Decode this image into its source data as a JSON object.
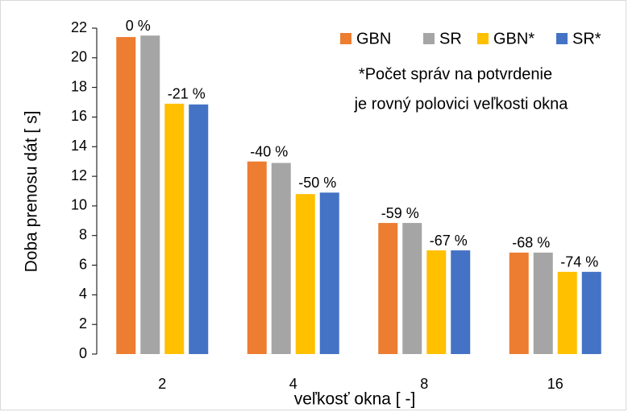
{
  "chart_data": {
    "type": "bar",
    "ylabel": "Doba prenosu dát [ s]",
    "xlabel": "veľkosť okna [ -]",
    "categories": [
      "2",
      "4",
      "8",
      "16"
    ],
    "series": [
      {
        "name": "GBN",
        "color": "#ed7d31",
        "values": [
          21.4,
          13.0,
          8.85,
          6.85
        ]
      },
      {
        "name": "SR",
        "color": "#a5a5a5",
        "values": [
          21.5,
          12.9,
          8.85,
          6.85
        ]
      },
      {
        "name": "GBN*",
        "color": "#ffc000",
        "values": [
          16.9,
          10.8,
          7.0,
          5.55
        ]
      },
      {
        "name": "SR*",
        "color": "#4472c4",
        "values": [
          16.85,
          10.9,
          7.0,
          5.55
        ]
      }
    ],
    "annotations": [
      [
        "0 %",
        "-21 %"
      ],
      [
        "-40 %",
        "-50 %"
      ],
      [
        "-59 %",
        "-67 %"
      ],
      [
        "-68 %",
        "-74 %"
      ]
    ],
    "note": [
      "*Počet správ  na potvrdenie",
      "je rovný polovici veľkosti okna"
    ],
    "ylim": [
      0,
      22
    ],
    "yticks": [
      0,
      2,
      4,
      6,
      8,
      10,
      12,
      14,
      16,
      18,
      20,
      22
    ],
    "legend": "top-right"
  }
}
